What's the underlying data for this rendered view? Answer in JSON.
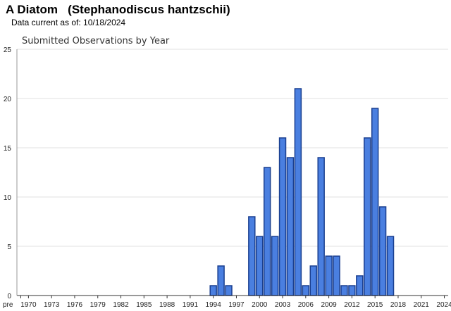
{
  "header": {
    "species_title": "A Diatom   (Stephanodiscus hantzschii)",
    "data_current": "Data current as of: 10/18/2024"
  },
  "chart_data": {
    "type": "bar",
    "title": "Submitted Observations by Year",
    "xlabel": "",
    "ylabel": "",
    "ylim": [
      0,
      25
    ],
    "y_ticks": [
      0,
      5,
      10,
      15,
      20,
      25
    ],
    "grid": true,
    "x_tick_labels": [
      "pre",
      "1970",
      "1973",
      "1976",
      "1979",
      "1982",
      "1985",
      "1988",
      "1991",
      "1994",
      "1997",
      "2000",
      "2003",
      "2006",
      "2009",
      "2012",
      "2015",
      "2018",
      "2021",
      "2024"
    ],
    "categories": [
      "pre",
      "1970",
      "1971",
      "1972",
      "1973",
      "1974",
      "1975",
      "1976",
      "1977",
      "1978",
      "1979",
      "1980",
      "1981",
      "1982",
      "1983",
      "1984",
      "1985",
      "1986",
      "1987",
      "1988",
      "1989",
      "1990",
      "1991",
      "1992",
      "1993",
      "1994",
      "1995",
      "1996",
      "1997",
      "1998",
      "1999",
      "2000",
      "2001",
      "2002",
      "2003",
      "2004",
      "2005",
      "2006",
      "2007",
      "2008",
      "2009",
      "2010",
      "2011",
      "2012",
      "2013",
      "2014",
      "2015",
      "2016",
      "2017",
      "2018",
      "2019",
      "2020",
      "2021",
      "2022",
      "2023",
      "2024"
    ],
    "values": [
      0,
      0,
      0,
      0,
      0,
      0,
      0,
      0,
      0,
      0,
      0,
      0,
      0,
      0,
      0,
      0,
      0,
      0,
      0,
      0,
      0,
      0,
      0,
      0,
      0,
      1,
      3,
      1,
      0,
      0,
      8,
      6,
      13,
      6,
      16,
      14,
      21,
      1,
      3,
      14,
      4,
      4,
      1,
      1,
      2,
      16,
      19,
      9,
      6,
      0,
      0,
      0,
      0,
      0,
      0,
      0
    ],
    "colors": {
      "bar_fill": "#4a7fe0",
      "bar_stroke": "#1a3f8f",
      "grid": "#e0e0e0",
      "axis": "#333333"
    }
  }
}
